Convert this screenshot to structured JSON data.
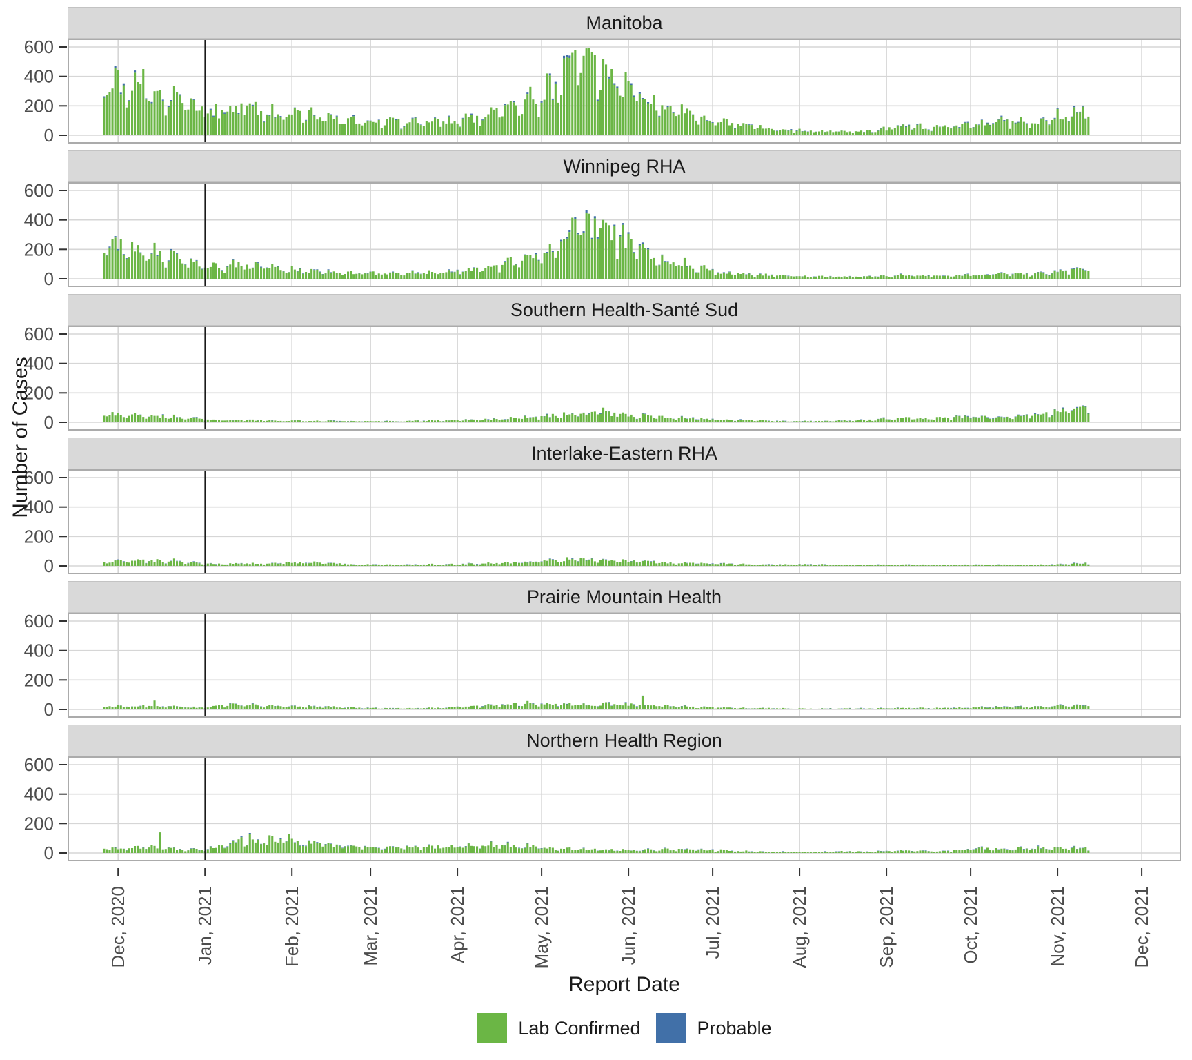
{
  "y_axis": {
    "label": "Number of Cases"
  },
  "x_axis": {
    "label": "Report Date"
  },
  "legend": {
    "items": [
      {
        "label": "Lab Confirmed",
        "color": "#6BB645"
      },
      {
        "label": "Probable",
        "color": "#4170A8"
      }
    ]
  },
  "chart_data": {
    "type": "bar",
    "stacked": true,
    "series_names": [
      "Lab Confirmed",
      "Probable"
    ],
    "x_start_date": "2020-11-26",
    "x_end_date": "2021-11-12",
    "total_days": 352,
    "x_resolution": "daily bars; facet values are estimated weekly-average daily case counts read from the plot",
    "ylim": [
      0,
      600
    ],
    "y_ticks": [
      0,
      200,
      400,
      600
    ],
    "grid": true,
    "legend_position": "bottom",
    "month_ticks": [
      {
        "label": "Dec, 2020",
        "day_offset": 5
      },
      {
        "label": "Jan, 2021",
        "day_offset": 36
      },
      {
        "label": "Feb, 2021",
        "day_offset": 67
      },
      {
        "label": "Mar, 2021",
        "day_offset": 95
      },
      {
        "label": "Apr, 2021",
        "day_offset": 126
      },
      {
        "label": "May, 2021",
        "day_offset": 156
      },
      {
        "label": "Jun, 2021",
        "day_offset": 187
      },
      {
        "label": "Jul, 2021",
        "day_offset": 217
      },
      {
        "label": "Aug, 2021",
        "day_offset": 248
      },
      {
        "label": "Sep, 2021",
        "day_offset": 279
      },
      {
        "label": "Oct, 2021",
        "day_offset": 309
      },
      {
        "label": "Nov, 2021",
        "day_offset": 340
      },
      {
        "label": "Dec, 2021",
        "day_offset": 370
      }
    ],
    "reference_line": {
      "date": "2021-01-01",
      "day_offset": 36,
      "color": "#1a1a1a"
    },
    "probable_share_estimate": 0.03,
    "colors": {
      "lab_confirmed": "#6BB645",
      "probable": "#4170A8",
      "strip_bg": "#D9D9D9",
      "gridline": "#D6D6D6",
      "panel_border": "#ABABAB",
      "tick_text": "#4D4D4D",
      "tick_mark": "#333333"
    },
    "facets": [
      {
        "name": "Manitoba",
        "weekly_lab_confirmed": [
          360,
          330,
          300,
          260,
          200,
          150,
          160,
          180,
          165,
          135,
          140,
          115,
          100,
          85,
          80,
          85,
          90,
          95,
          100,
          115,
          150,
          200,
          240,
          300,
          480,
          440,
          380,
          300,
          220,
          170,
          120,
          90,
          70,
          55,
          45,
          35,
          28,
          25,
          22,
          28,
          45,
          60,
          50,
          55,
          70,
          95,
          90,
          85,
          100,
          135,
          150
        ],
        "daily_spikes": {
          "14": 450,
          "167": 560,
          "172": 590,
          "175": 545,
          "178": 520,
          "186": 430
        }
      },
      {
        "name": "Winnipeg RHA",
        "weekly_lab_confirmed": [
          230,
          205,
          175,
          150,
          120,
          90,
          80,
          90,
          80,
          60,
          55,
          48,
          42,
          36,
          35,
          35,
          40,
          45,
          50,
          60,
          75,
          110,
          150,
          200,
          360,
          330,
          280,
          230,
          160,
          120,
          80,
          50,
          38,
          28,
          24,
          20,
          16,
          15,
          13,
          15,
          18,
          25,
          22,
          25,
          25,
          30,
          30,
          28,
          35,
          55,
          65
        ],
        "daily_spikes": {
          "167": 415,
          "172": 450,
          "178": 400
        }
      },
      {
        "name": "Southern Health-Santé Sud",
        "weekly_lab_confirmed": [
          55,
          50,
          45,
          40,
          30,
          20,
          15,
          15,
          12,
          11,
          12,
          10,
          10,
          8,
          8,
          8,
          10,
          12,
          15,
          18,
          22,
          28,
          35,
          45,
          55,
          62,
          55,
          45,
          40,
          34,
          25,
          18,
          15,
          12,
          10,
          8,
          8,
          10,
          12,
          15,
          25,
          30,
          25,
          30,
          35,
          40,
          35,
          40,
          55,
          75,
          88
        ],
        "daily_spikes": {
          "178": 100,
          "349": 110
        }
      },
      {
        "name": "Interlake-Eastern RHA",
        "weekly_lab_confirmed": [
          25,
          30,
          34,
          30,
          24,
          15,
          12,
          15,
          18,
          20,
          22,
          20,
          15,
          10,
          8,
          8,
          10,
          10,
          12,
          15,
          18,
          22,
          28,
          34,
          42,
          40,
          34,
          30,
          25,
          20,
          18,
          15,
          12,
          10,
          10,
          8,
          10,
          8,
          6,
          6,
          8,
          8,
          6,
          6,
          6,
          8,
          8,
          6,
          8,
          12,
          16
        ],
        "daily_spikes": {
          "25": 50,
          "170": 55
        }
      },
      {
        "name": "Prairie Mountain Health",
        "weekly_lab_confirmed": [
          20,
          20,
          25,
          20,
          15,
          12,
          25,
          30,
          25,
          20,
          20,
          18,
          15,
          12,
          8,
          8,
          8,
          10,
          15,
          20,
          30,
          35,
          40,
          35,
          34,
          30,
          34,
          30,
          25,
          20,
          15,
          12,
          10,
          8,
          8,
          6,
          5,
          5,
          6,
          6,
          8,
          10,
          8,
          10,
          12,
          15,
          18,
          15,
          18,
          25,
          28
        ],
        "daily_spikes": {
          "18": 60,
          "192": 90
        }
      },
      {
        "name": "Northern Health Region",
        "weekly_lab_confirmed": [
          30,
          30,
          38,
          35,
          25,
          18,
          50,
          85,
          75,
          85,
          65,
          55,
          45,
          40,
          44,
          40,
          35,
          40,
          45,
          50,
          55,
          45,
          40,
          30,
          25,
          22,
          20,
          18,
          20,
          25,
          25,
          20,
          15,
          10,
          8,
          6,
          5,
          8,
          10,
          8,
          12,
          15,
          12,
          15,
          25,
          30,
          25,
          30,
          34,
          34,
          30
        ],
        "daily_spikes": {
          "20": 140,
          "52": 130,
          "59": 120,
          "66": 128
        }
      }
    ]
  }
}
